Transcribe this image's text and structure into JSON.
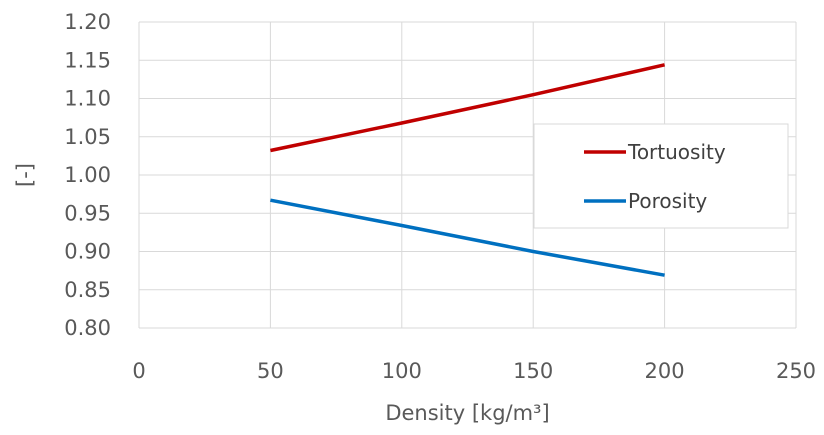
{
  "chart_data": {
    "type": "line",
    "title": "",
    "xlabel": "Density [kg/m³]",
    "ylabel": "[-]",
    "xlim": [
      0,
      250
    ],
    "ylim": [
      0.8,
      1.2
    ],
    "x_ticks": [
      "0",
      "50",
      "100",
      "150",
      "200",
      "250"
    ],
    "y_ticks": [
      "0.80",
      "0.85",
      "0.90",
      "0.95",
      "1.00",
      "1.05",
      "1.10",
      "1.15",
      "1.20"
    ],
    "grid": true,
    "legend_position": "right",
    "series": [
      {
        "name": "Tortuosity",
        "color": "#c00000",
        "x": [
          50,
          100,
          150,
          200
        ],
        "y": [
          1.032,
          1.068,
          1.105,
          1.144
        ]
      },
      {
        "name": "Porosity",
        "color": "#0070c0",
        "x": [
          50,
          100,
          150,
          200
        ],
        "y": [
          0.967,
          0.934,
          0.9,
          0.869
        ]
      }
    ]
  }
}
